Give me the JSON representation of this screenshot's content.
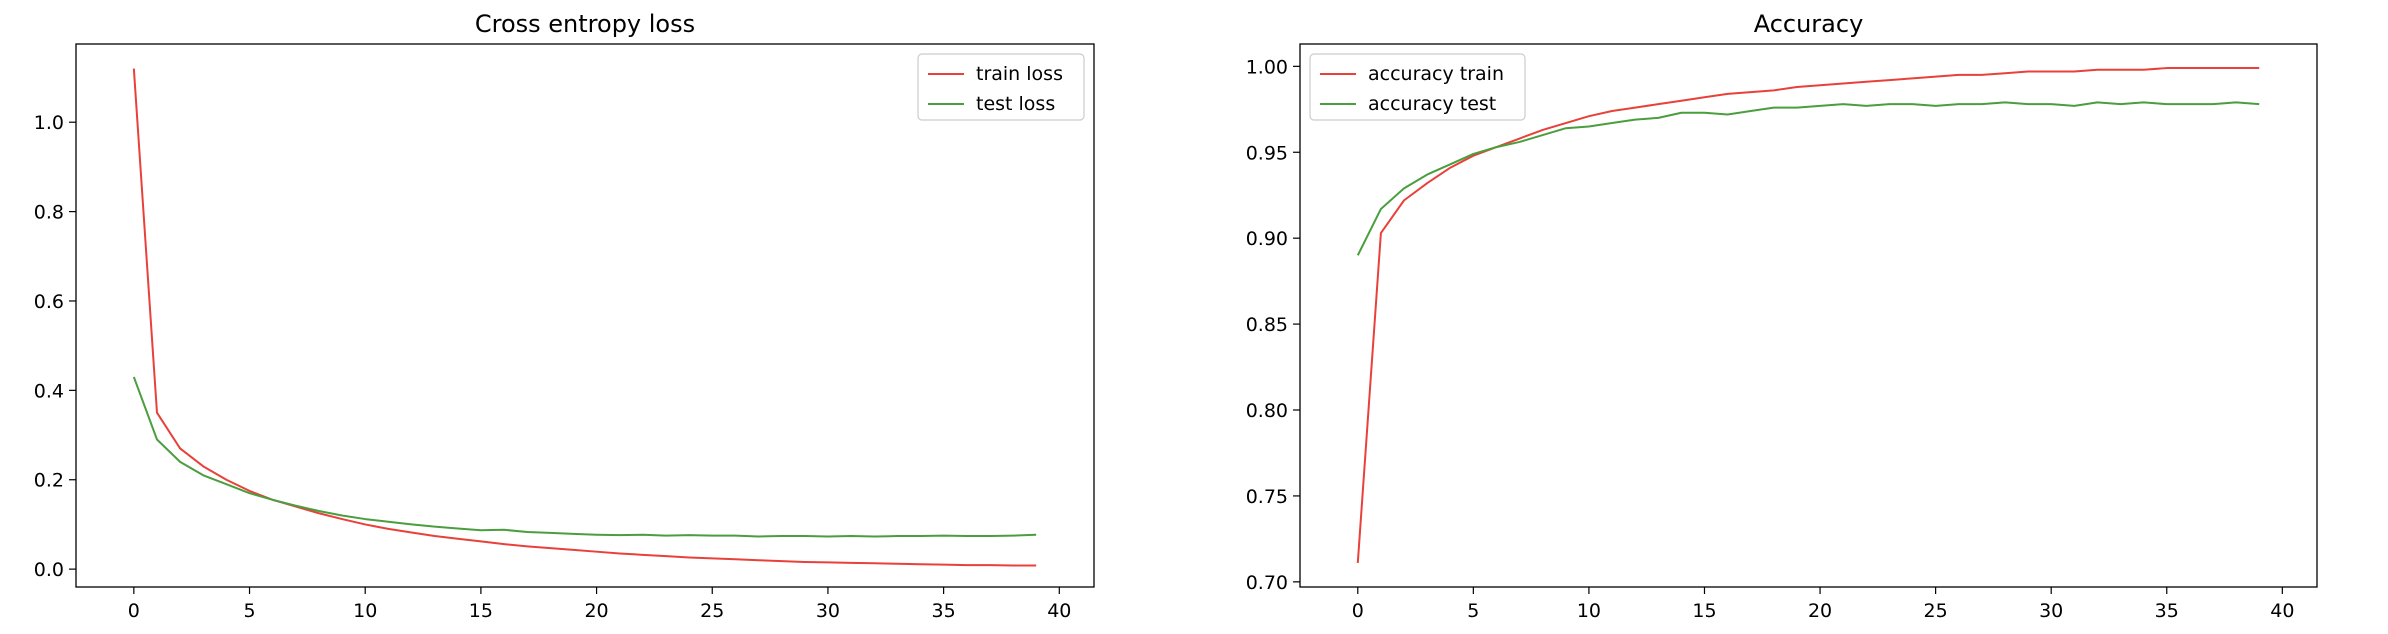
{
  "chart_data": [
    {
      "type": "line",
      "title": "Cross entropy loss",
      "xlabel": "",
      "ylabel": "",
      "xlim": [
        -2.5,
        41.5
      ],
      "ylim": [
        -0.04,
        1.175
      ],
      "xticks": [
        0,
        5,
        10,
        15,
        20,
        25,
        30,
        35,
        40
      ],
      "yticks": [
        0.0,
        0.2,
        0.4,
        0.6,
        0.8,
        1.0
      ],
      "grid": false,
      "legend_position": "top-right",
      "x": [
        0,
        1,
        2,
        3,
        4,
        5,
        6,
        7,
        8,
        9,
        10,
        11,
        12,
        13,
        14,
        15,
        16,
        17,
        18,
        19,
        20,
        21,
        22,
        23,
        24,
        25,
        26,
        27,
        28,
        29,
        30,
        31,
        32,
        33,
        34,
        35,
        36,
        37,
        38,
        39
      ],
      "series": [
        {
          "name": "train loss",
          "color": "#e8413a",
          "values": [
            1.12,
            0.35,
            0.27,
            0.23,
            0.2,
            0.175,
            0.155,
            0.14,
            0.125,
            0.112,
            0.1,
            0.09,
            0.082,
            0.074,
            0.068,
            0.062,
            0.056,
            0.051,
            0.047,
            0.043,
            0.039,
            0.035,
            0.032,
            0.029,
            0.026,
            0.024,
            0.022,
            0.02,
            0.018,
            0.016,
            0.015,
            0.014,
            0.013,
            0.012,
            0.011,
            0.01,
            0.009,
            0.009,
            0.008,
            0.008
          ]
        },
        {
          "name": "test loss",
          "color": "#4a9e3e",
          "values": [
            0.43,
            0.29,
            0.24,
            0.21,
            0.19,
            0.17,
            0.155,
            0.142,
            0.13,
            0.12,
            0.112,
            0.106,
            0.1,
            0.095,
            0.091,
            0.087,
            0.088,
            0.083,
            0.081,
            0.079,
            0.077,
            0.076,
            0.077,
            0.075,
            0.076,
            0.075,
            0.075,
            0.073,
            0.074,
            0.074,
            0.073,
            0.074,
            0.073,
            0.074,
            0.074,
            0.075,
            0.074,
            0.074,
            0.075,
            0.077
          ]
        }
      ]
    },
    {
      "type": "line",
      "title": "Accuracy",
      "xlabel": "",
      "ylabel": "",
      "xlim": [
        -2.5,
        41.5
      ],
      "ylim": [
        0.697,
        1.013
      ],
      "xticks": [
        0,
        5,
        10,
        15,
        20,
        25,
        30,
        35,
        40
      ],
      "yticks": [
        0.7,
        0.75,
        0.8,
        0.85,
        0.9,
        0.95,
        1.0
      ],
      "grid": false,
      "legend_position": "top-left",
      "x": [
        0,
        1,
        2,
        3,
        4,
        5,
        6,
        7,
        8,
        9,
        10,
        11,
        12,
        13,
        14,
        15,
        16,
        17,
        18,
        19,
        20,
        21,
        22,
        23,
        24,
        25,
        26,
        27,
        28,
        29,
        30,
        31,
        32,
        33,
        34,
        35,
        36,
        37,
        38,
        39
      ],
      "series": [
        {
          "name": "accuracy train",
          "color": "#e8413a",
          "values": [
            0.711,
            0.903,
            0.922,
            0.932,
            0.941,
            0.948,
            0.953,
            0.958,
            0.963,
            0.967,
            0.971,
            0.974,
            0.976,
            0.978,
            0.98,
            0.982,
            0.984,
            0.985,
            0.986,
            0.988,
            0.989,
            0.99,
            0.991,
            0.992,
            0.993,
            0.994,
            0.995,
            0.995,
            0.996,
            0.997,
            0.997,
            0.997,
            0.998,
            0.998,
            0.998,
            0.999,
            0.999,
            0.999,
            0.999,
            0.999
          ]
        },
        {
          "name": "accuracy test",
          "color": "#4a9e3e",
          "values": [
            0.89,
            0.917,
            0.929,
            0.937,
            0.943,
            0.949,
            0.953,
            0.956,
            0.96,
            0.964,
            0.965,
            0.967,
            0.969,
            0.97,
            0.973,
            0.973,
            0.972,
            0.974,
            0.976,
            0.976,
            0.977,
            0.978,
            0.977,
            0.978,
            0.978,
            0.977,
            0.978,
            0.978,
            0.979,
            0.978,
            0.978,
            0.977,
            0.979,
            0.978,
            0.979,
            0.978,
            0.978,
            0.978,
            0.979,
            0.978
          ]
        }
      ]
    }
  ]
}
